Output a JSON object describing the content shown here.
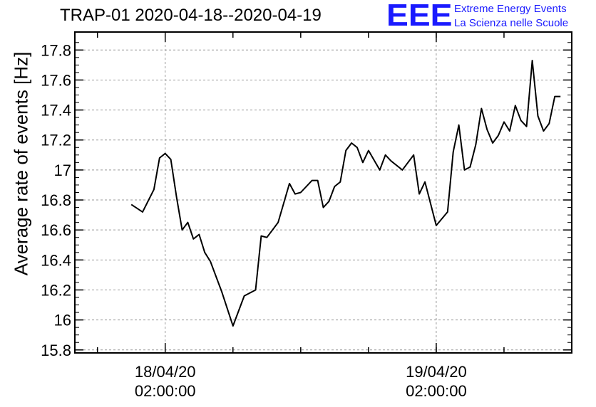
{
  "header": {
    "title": "TRAP-01 2020-04-18--2020-04-19",
    "logo_mark": "EEE",
    "logo_line1": "Extreme Energy Events",
    "logo_line2": "La Scienza nelle Scuole"
  },
  "colors": {
    "logo": "#1a1aff",
    "line": "#000000",
    "grid": "#999999"
  },
  "chart_data": {
    "type": "line",
    "title": "TRAP-01 2020-04-18--2020-04-19",
    "xlabel": "",
    "ylabel": "Average rate of events [Hz]",
    "ylim": [
      15.78,
      17.92
    ],
    "xlim": [
      "2020-04-17 18:00",
      "2020-04-19 14:00"
    ],
    "grid": true,
    "yticks": [
      "15.8",
      "16",
      "16.2",
      "16.4",
      "16.6",
      "16.8",
      "17",
      "17.2",
      "17.4",
      "17.6",
      "17.8"
    ],
    "xticks": [
      {
        "line1": "18/04/20",
        "line2": "02:00:00",
        "x": "2020-04-18 02:00"
      },
      {
        "line1": "19/04/20",
        "line2": "02:00:00",
        "x": "2020-04-19 02:00"
      }
    ],
    "series": [
      {
        "x": [
          "2020-04-17 23:00",
          "2020-04-18 00:00",
          "2020-04-18 01:00",
          "2020-04-18 01:30",
          "2020-04-18 02:00",
          "2020-04-18 02:30",
          "2020-04-18 03:00",
          "2020-04-18 03:30",
          "2020-04-18 04:00",
          "2020-04-18 04:30",
          "2020-04-18 05:00",
          "2020-04-18 05:30",
          "2020-04-18 06:00",
          "2020-04-18 07:00",
          "2020-04-18 08:00",
          "2020-04-18 09:00",
          "2020-04-18 10:00",
          "2020-04-18 10:30",
          "2020-04-18 11:00",
          "2020-04-18 11:30",
          "2020-04-18 12:00",
          "2020-04-18 13:00",
          "2020-04-18 13:30",
          "2020-04-18 14:00",
          "2020-04-18 15:00",
          "2020-04-18 15:30",
          "2020-04-18 16:00",
          "2020-04-18 16:30",
          "2020-04-18 17:00",
          "2020-04-18 17:30",
          "2020-04-18 18:00",
          "2020-04-18 18:30",
          "2020-04-18 19:00",
          "2020-04-18 19:30",
          "2020-04-18 20:00",
          "2020-04-18 21:00",
          "2020-04-18 21:30",
          "2020-04-18 22:00",
          "2020-04-18 23:00",
          "2020-04-19 00:00",
          "2020-04-19 00:30",
          "2020-04-19 01:00",
          "2020-04-19 02:00",
          "2020-04-19 03:00",
          "2020-04-19 03:30",
          "2020-04-19 04:00",
          "2020-04-19 04:30",
          "2020-04-19 05:00",
          "2020-04-19 05:30",
          "2020-04-19 06:00",
          "2020-04-19 06:30",
          "2020-04-19 07:00",
          "2020-04-19 07:30",
          "2020-04-19 08:00",
          "2020-04-19 08:30",
          "2020-04-19 09:00",
          "2020-04-19 09:30",
          "2020-04-19 10:00",
          "2020-04-19 10:30",
          "2020-04-19 11:00",
          "2020-04-19 11:30",
          "2020-04-19 12:00",
          "2020-04-19 12:30",
          "2020-04-19 13:00"
        ],
        "values": [
          16.77,
          16.72,
          16.87,
          17.08,
          17.11,
          17.07,
          16.82,
          16.6,
          16.65,
          16.54,
          16.57,
          16.45,
          16.39,
          16.19,
          15.96,
          16.16,
          16.2,
          16.56,
          16.55,
          16.6,
          16.65,
          16.91,
          16.84,
          16.85,
          16.93,
          16.93,
          16.75,
          16.79,
          16.89,
          16.92,
          17.13,
          17.18,
          17.15,
          17.05,
          17.13,
          17.0,
          17.1,
          17.06,
          17.0,
          17.1,
          16.84,
          16.92,
          16.63,
          16.72,
          17.12,
          17.3,
          17.0,
          17.02,
          17.17,
          17.41,
          17.27,
          17.18,
          17.23,
          17.32,
          17.26,
          17.43,
          17.33,
          17.29,
          17.73,
          17.36,
          17.26,
          17.31,
          17.49,
          17.49
        ]
      }
    ]
  }
}
